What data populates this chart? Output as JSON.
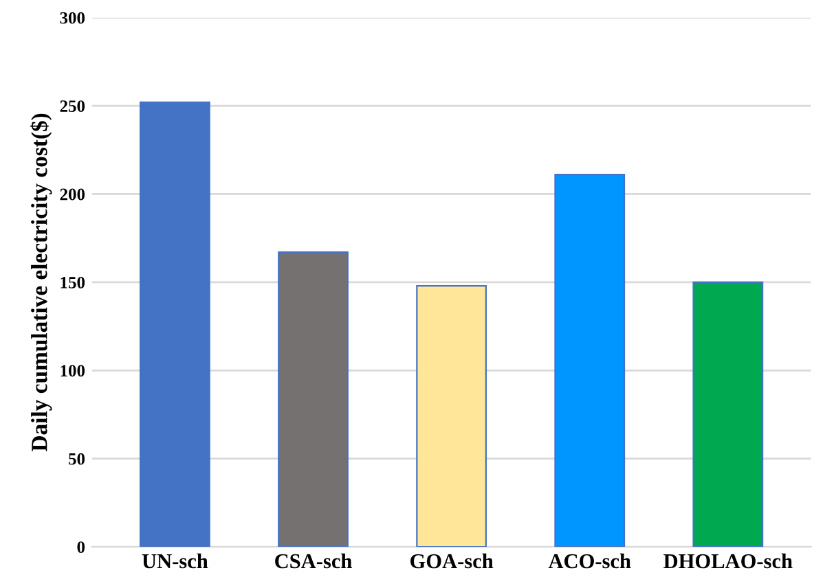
{
  "chart_data": {
    "type": "bar",
    "ylabel": "Daily cumulative electricity cost($)",
    "categories": [
      "UN-sch",
      "CSA-sch",
      "GOA-sch",
      "ACO-sch",
      "DHOLAO-sch"
    ],
    "values": [
      252,
      167,
      148,
      211,
      150
    ],
    "colors": [
      "#4472c4",
      "#767171",
      "#ffe699",
      "#0096ff",
      "#00a84f"
    ],
    "ylim": [
      0,
      300
    ],
    "yticks": [
      0,
      50,
      100,
      150,
      200,
      250,
      300
    ],
    "grid": "y"
  }
}
